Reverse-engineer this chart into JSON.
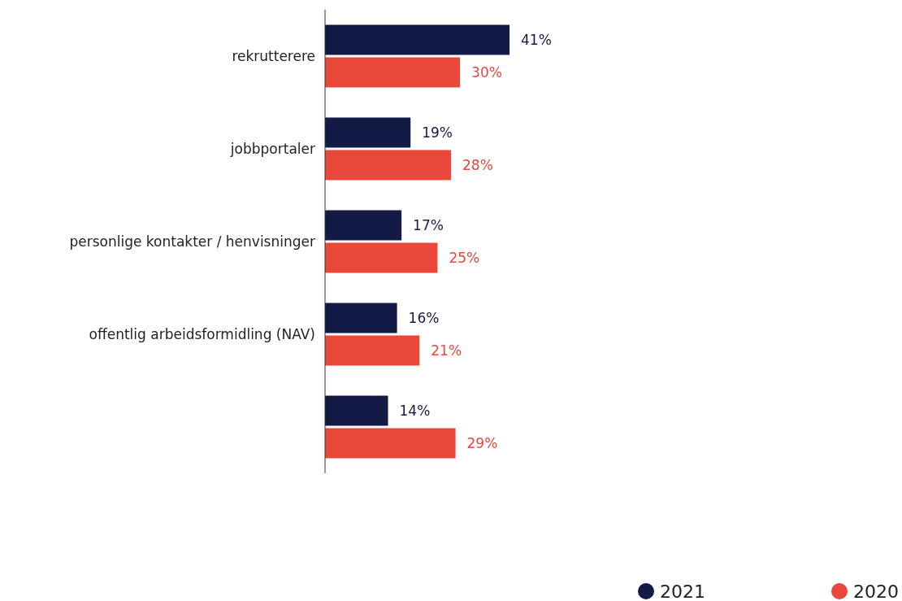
{
  "chart_data": {
    "type": "bar",
    "orientation": "horizontal",
    "categories": [
      "rekrutterere",
      "jobbportaler",
      "personlige kontakter / henvisninger",
      "offentlig arbeidsformidling (NAV)",
      null
    ],
    "series": [
      {
        "name": "2021",
        "color": "#141a46",
        "values": [
          41,
          19,
          17,
          16,
          14
        ],
        "value_labels": [
          "41%",
          "19%",
          "17%",
          "16%",
          "14%"
        ]
      },
      {
        "name": "2020",
        "color": "#e8473a",
        "values": [
          30,
          28,
          25,
          21,
          29
        ],
        "value_labels": [
          "30%",
          "28%",
          "25%",
          "21%",
          "29%"
        ]
      }
    ],
    "legend": "bottom right"
  }
}
